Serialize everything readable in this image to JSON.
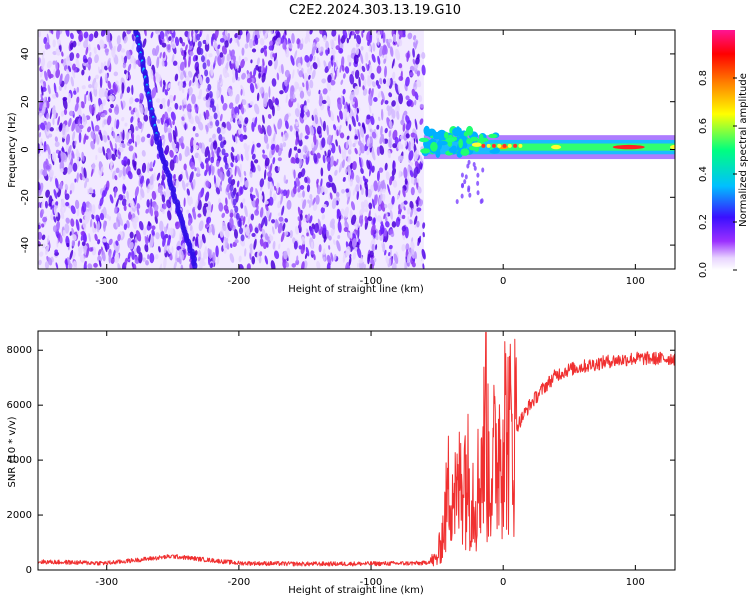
{
  "title": "C2E2.2024.303.13.19.G10",
  "chart_data": [
    {
      "type": "heatmap",
      "xlabel": "Height of straight line (km)",
      "ylabel": "Frequency (Hz)",
      "xlim": [
        -352,
        130
      ],
      "ylim": [
        -50,
        50
      ],
      "xticks": [
        -300,
        -200,
        -100,
        0,
        100
      ],
      "yticks": [
        -40,
        -20,
        0,
        20,
        40
      ],
      "colorbar": {
        "label": "Normalized spectral amplitude",
        "range": [
          0,
          1
        ],
        "ticks": [
          0.0,
          0.2,
          0.4,
          0.6,
          0.8
        ],
        "colors": [
          "#ffffff",
          "#e0c8ff",
          "#8a2be2",
          "#3a10ff",
          "#00c0ff",
          "#00ff7f",
          "#ffff00",
          "#ff8000",
          "#ff0000",
          "#ff1493"
        ]
      },
      "noise_region_x": [
        -352,
        -60
      ],
      "diagonal_track_points": [
        [
          -278,
          50
        ],
        [
          -262,
          5
        ],
        [
          -232,
          -50
        ]
      ],
      "signal_track": [
        {
          "x": -60,
          "freq": 4,
          "amplitude": 0.55
        },
        {
          "x": -40,
          "freq": 4,
          "amplitude": 0.5
        },
        {
          "x": -20,
          "freq": 2,
          "amplitude": 0.6
        },
        {
          "x": 0,
          "freq": 1,
          "amplitude": 0.75
        },
        {
          "x": 40,
          "freq": 1,
          "amplitude": 0.6
        },
        {
          "x": 95,
          "freq": 1,
          "amplitude": 0.8
        },
        {
          "x": 130,
          "freq": 1,
          "amplitude": 0.6
        }
      ]
    },
    {
      "type": "line",
      "xlabel": "Height of straight line (km)",
      "ylabel": "SNR (10 * v/v)",
      "xlim": [
        -352,
        130
      ],
      "ylim": [
        0,
        8700
      ],
      "xticks": [
        -300,
        -200,
        -100,
        0,
        100
      ],
      "yticks": [
        0,
        2000,
        4000,
        6000,
        8000
      ],
      "color": "#f03030",
      "series": [
        {
          "x": [
            -352,
            -300,
            -250,
            -200,
            -150,
            -100,
            -60,
            -50,
            -45,
            -40,
            -35,
            -30,
            -25,
            -20,
            -15,
            -10,
            -5,
            0,
            5,
            10,
            20,
            30,
            40,
            50,
            60,
            80,
            100,
            120,
            130
          ],
          "values": [
            300,
            250,
            500,
            250,
            220,
            230,
            250,
            400,
            1500,
            3500,
            2500,
            4000,
            3000,
            2800,
            4500,
            3500,
            4200,
            5500,
            4800,
            5200,
            6000,
            6600,
            7100,
            7300,
            7400,
            7600,
            7700,
            7700,
            7700
          ]
        }
      ]
    }
  ]
}
